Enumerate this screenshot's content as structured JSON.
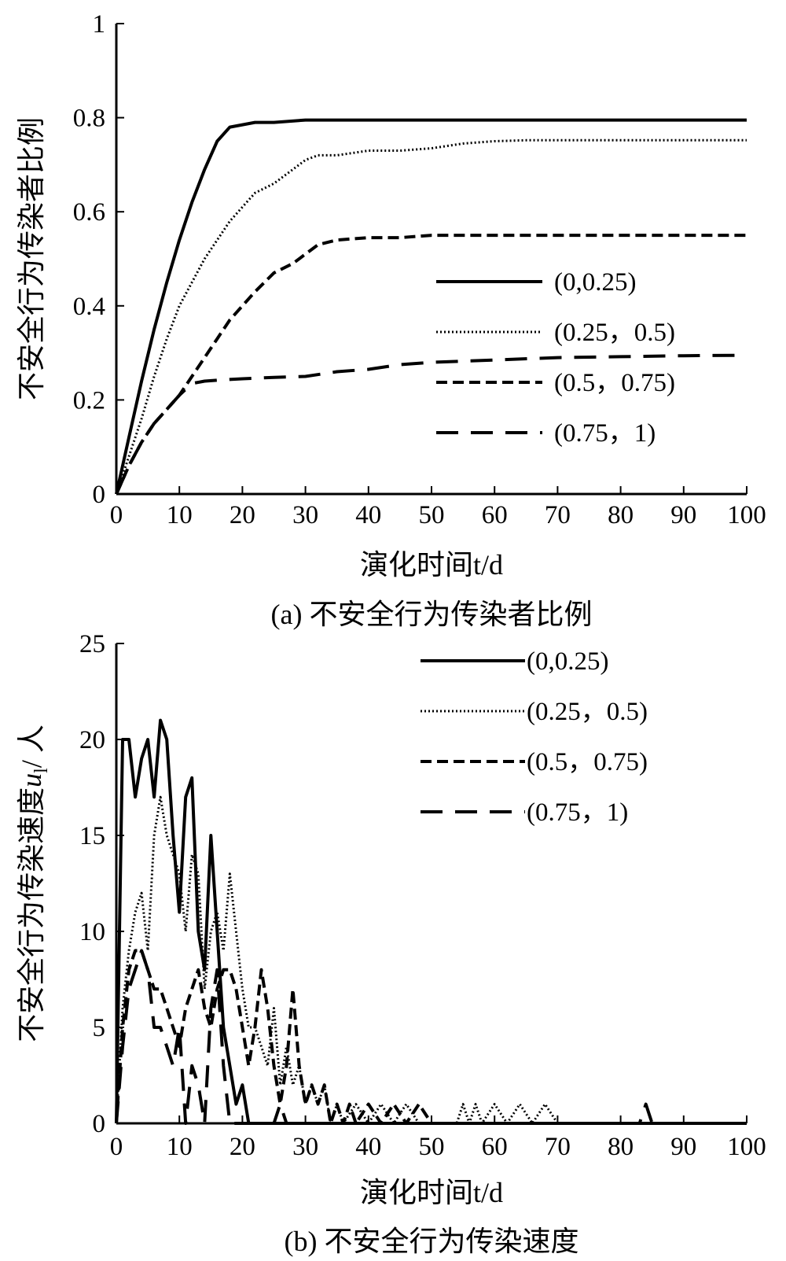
{
  "chart_data": [
    {
      "type": "line",
      "caption": "(a) 不安全行为传染者比例",
      "xlabel": "演化时间t/d",
      "ylabel": "不安全行为传染者比例",
      "xlim": [
        0,
        100
      ],
      "ylim": [
        0,
        1
      ],
      "xticks": [
        "0",
        "10",
        "20",
        "30",
        "40",
        "50",
        "60",
        "70",
        "80",
        "90",
        "100"
      ],
      "yticks": [
        "0",
        "0.2",
        "0.4",
        "0.6",
        "0.8",
        "1"
      ],
      "legend_position": "right",
      "series": [
        {
          "name": "(0,0.25)",
          "style": "solid",
          "x": [
            0,
            2,
            4,
            6,
            8,
            10,
            12,
            14,
            16,
            18,
            20,
            22,
            25,
            30,
            40,
            50,
            60,
            70,
            80,
            90,
            100
          ],
          "y": [
            0,
            0.12,
            0.24,
            0.35,
            0.45,
            0.54,
            0.62,
            0.69,
            0.75,
            0.78,
            0.785,
            0.79,
            0.79,
            0.795,
            0.795,
            0.795,
            0.795,
            0.795,
            0.795,
            0.795,
            0.795
          ]
        },
        {
          "name": "(0.25，0.5)",
          "style": "dotted",
          "x": [
            0,
            2,
            4,
            6,
            8,
            10,
            12,
            14,
            16,
            18,
            20,
            22,
            25,
            28,
            30,
            32,
            35,
            40,
            45,
            50,
            55,
            60,
            65,
            70,
            80,
            90,
            100
          ],
          "y": [
            0,
            0.08,
            0.16,
            0.25,
            0.33,
            0.4,
            0.45,
            0.5,
            0.54,
            0.58,
            0.61,
            0.64,
            0.66,
            0.69,
            0.71,
            0.72,
            0.72,
            0.73,
            0.73,
            0.735,
            0.745,
            0.75,
            0.752,
            0.752,
            0.752,
            0.752,
            0.752
          ]
        },
        {
          "name": "(0.5，0.75)",
          "style": "dashed",
          "x": [
            0,
            2,
            4,
            6,
            8,
            10,
            12,
            14,
            16,
            18,
            20,
            22,
            25,
            28,
            30,
            32,
            35,
            40,
            45,
            50,
            60,
            70,
            80,
            90,
            100
          ],
          "y": [
            0,
            0.06,
            0.11,
            0.15,
            0.18,
            0.21,
            0.25,
            0.29,
            0.33,
            0.37,
            0.4,
            0.43,
            0.47,
            0.49,
            0.51,
            0.53,
            0.54,
            0.545,
            0.545,
            0.55,
            0.55,
            0.55,
            0.55,
            0.55,
            0.55
          ]
        },
        {
          "name": "(0.75，1)",
          "style": "longdash",
          "x": [
            0,
            2,
            4,
            6,
            8,
            10,
            12,
            14,
            16,
            20,
            25,
            30,
            35,
            40,
            45,
            50,
            60,
            70,
            80,
            90,
            100
          ],
          "y": [
            0,
            0.06,
            0.11,
            0.15,
            0.18,
            0.21,
            0.235,
            0.24,
            0.242,
            0.245,
            0.248,
            0.25,
            0.26,
            0.265,
            0.275,
            0.28,
            0.285,
            0.29,
            0.292,
            0.294,
            0.295
          ]
        }
      ]
    },
    {
      "type": "line",
      "caption": "(b) 不安全行为传染速度",
      "xlabel": "演化时间t/d",
      "ylabel_prefix": "不安全行为传染速度",
      "ylabel_var": "u",
      "ylabel_sub": "l",
      "ylabel_suffix": "/ 人",
      "xlim": [
        0,
        100
      ],
      "ylim": [
        0,
        25
      ],
      "xticks": [
        "0",
        "10",
        "20",
        "30",
        "40",
        "50",
        "60",
        "70",
        "80",
        "90",
        "100"
      ],
      "yticks": [
        "0",
        "5",
        "10",
        "15",
        "20",
        "25"
      ],
      "legend_position": "top-right",
      "series": [
        {
          "name": "(0,0.25)",
          "style": "solid",
          "x": [
            0,
            0.5,
            1,
            2,
            3,
            4,
            5,
            6,
            7,
            8,
            9,
            10,
            11,
            12,
            13,
            14,
            15,
            16,
            17,
            18,
            19,
            20,
            21,
            22,
            25,
            40,
            60,
            80,
            100
          ],
          "y": [
            0,
            10,
            20,
            20,
            17,
            19,
            20,
            17,
            21,
            20,
            15,
            11,
            17,
            18,
            10,
            8,
            15,
            10,
            5,
            3,
            1,
            2,
            0,
            0,
            0,
            0,
            0,
            0,
            0
          ]
        },
        {
          "name": "(0.25，0.5)",
          "style": "dotted",
          "x": [
            0,
            1,
            2,
            3,
            4,
            5,
            6,
            7,
            8,
            9,
            10,
            11,
            12,
            13,
            14,
            15,
            16,
            17,
            18,
            19,
            20,
            21,
            22,
            23,
            24,
            25,
            26,
            27,
            28,
            29,
            30,
            31,
            32,
            33,
            34,
            35,
            36,
            38,
            40,
            42,
            44,
            46,
            48,
            50,
            52,
            54,
            55,
            56,
            57,
            58,
            60,
            62,
            64,
            66,
            68,
            70,
            72,
            80,
            90,
            100
          ],
          "y": [
            0,
            6,
            9,
            11,
            12,
            9,
            15,
            17,
            15,
            14,
            13,
            10,
            14,
            13,
            7,
            10,
            11,
            9,
            13,
            10,
            7,
            5,
            5,
            4,
            3,
            6,
            2,
            4,
            2,
            3,
            1,
            2,
            1,
            2,
            0,
            1,
            0,
            1,
            0,
            1,
            0,
            1,
            0,
            0,
            0,
            0,
            1,
            0,
            1,
            0,
            1,
            0,
            1,
            0,
            1,
            0,
            0,
            0,
            0,
            0
          ]
        },
        {
          "name": "(0.5，0.75)",
          "style": "dashed",
          "x": [
            0,
            1,
            2,
            3,
            4,
            5,
            6,
            7,
            8,
            9,
            10,
            11,
            12,
            13,
            14,
            15,
            16,
            17,
            18,
            19,
            20,
            21,
            22,
            23,
            24,
            25,
            26,
            27,
            28,
            29,
            30,
            31,
            32,
            33,
            34,
            35,
            36,
            37,
            38,
            40,
            42,
            44,
            46,
            48,
            50,
            60,
            80,
            100
          ],
          "y": [
            0,
            5,
            8,
            9,
            9,
            8,
            7,
            7,
            6,
            5,
            4,
            6,
            7,
            8,
            6,
            5,
            7,
            8,
            8,
            7,
            5,
            3,
            5,
            8,
            6,
            3,
            1,
            3,
            7,
            3,
            1,
            2,
            1,
            2,
            0,
            1,
            0,
            1,
            0,
            1,
            0,
            1,
            0,
            1,
            0,
            0,
            0,
            0
          ]
        },
        {
          "name": "(0.75，1)",
          "style": "longdash",
          "x": [
            0,
            1,
            2,
            3,
            4,
            5,
            6,
            7,
            8,
            9,
            10,
            11,
            12,
            13,
            14,
            15,
            16,
            17,
            18,
            19,
            20,
            22,
            25,
            26,
            27,
            28,
            30,
            40,
            60,
            80,
            83,
            84,
            85,
            86,
            90,
            100
          ],
          "y": [
            0,
            4,
            7,
            8,
            9,
            8,
            5,
            5,
            4,
            3,
            5,
            0,
            3,
            2,
            0,
            6,
            8,
            3,
            0,
            0,
            0,
            0,
            0,
            1,
            0,
            0,
            0,
            0,
            0,
            0,
            0,
            1,
            0,
            0,
            0,
            0
          ]
        }
      ]
    }
  ]
}
